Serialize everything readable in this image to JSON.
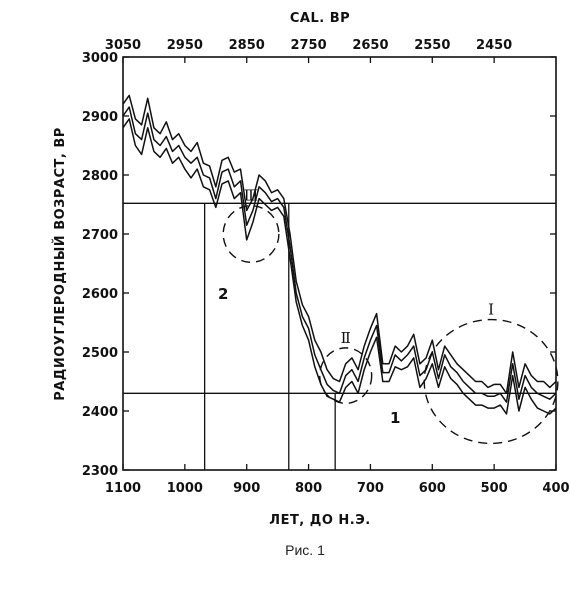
{
  "chart_data": {
    "type": "line",
    "title": "",
    "xlabel": "ЛЕТ, ДО Н.Э.",
    "ylabel": "РАДИОУГЛЕРОДНЫЙ ВОЗРАСТ, BP",
    "top_axis_label": "CAL. BP",
    "caption": "Рис. 1",
    "xlim": [
      1100,
      400
    ],
    "ylim": [
      2300,
      3000
    ],
    "x_ticks": [
      "1100",
      "1000",
      "900",
      "800",
      "700",
      "600",
      "500",
      "400"
    ],
    "x_tick_values": [
      1100,
      1000,
      900,
      800,
      700,
      600,
      500,
      400
    ],
    "top_ticks": [
      "3050",
      "2950",
      "2850",
      "2750",
      "2650",
      "2550",
      "2450"
    ],
    "top_tick_values": [
      1100,
      1000,
      900,
      800,
      700,
      600,
      500
    ],
    "y_ticks": [
      "2300",
      "2400",
      "2500",
      "2600",
      "2700",
      "2800",
      "2900",
      "3000"
    ],
    "y_tick_values": [
      2300,
      2400,
      2500,
      2600,
      2700,
      2800,
      2900,
      3000
    ],
    "x": [
      1100,
      1090,
      1080,
      1070,
      1060,
      1050,
      1040,
      1030,
      1020,
      1010,
      1000,
      990,
      980,
      970,
      960,
      950,
      940,
      930,
      920,
      910,
      900,
      890,
      880,
      870,
      860,
      850,
      840,
      830,
      820,
      810,
      800,
      790,
      780,
      770,
      760,
      750,
      740,
      730,
      720,
      710,
      700,
      690,
      680,
      670,
      660,
      650,
      640,
      630,
      620,
      610,
      600,
      590,
      580,
      570,
      560,
      550,
      540,
      530,
      520,
      510,
      500,
      490,
      480,
      470,
      460,
      450,
      440,
      430,
      420,
      410,
      400
    ],
    "series": [
      {
        "values": [
          2920,
          2935,
          2895,
          2885,
          2930,
          2880,
          2870,
          2890,
          2860,
          2870,
          2850,
          2840,
          2855,
          2820,
          2815,
          2780,
          2825,
          2830,
          2805,
          2810,
          2740,
          2760,
          2800,
          2790,
          2770,
          2775,
          2760,
          2700,
          2620,
          2580,
          2560,
          2520,
          2500,
          2470,
          2455,
          2450,
          2480,
          2490,
          2470,
          2510,
          2540,
          2565,
          2480,
          2480,
          2510,
          2500,
          2510,
          2530,
          2480,
          2490,
          2520,
          2470,
          2510,
          2495,
          2480,
          2470,
          2460,
          2450,
          2450,
          2440,
          2445,
          2445,
          2430,
          2500,
          2440,
          2480,
          2460,
          2450,
          2450,
          2440,
          2450
        ]
      },
      {
        "values": [
          2900,
          2915,
          2870,
          2860,
          2905,
          2860,
          2850,
          2865,
          2840,
          2850,
          2830,
          2820,
          2830,
          2800,
          2795,
          2760,
          2805,
          2810,
          2780,
          2790,
          2715,
          2740,
          2780,
          2770,
          2755,
          2760,
          2745,
          2680,
          2600,
          2560,
          2540,
          2495,
          2470,
          2445,
          2435,
          2430,
          2460,
          2470,
          2450,
          2490,
          2520,
          2545,
          2465,
          2465,
          2495,
          2485,
          2495,
          2510,
          2460,
          2470,
          2500,
          2455,
          2495,
          2475,
          2465,
          2450,
          2440,
          2430,
          2430,
          2425,
          2425,
          2430,
          2415,
          2480,
          2420,
          2460,
          2440,
          2430,
          2425,
          2420,
          2430
        ]
      },
      {
        "values": [
          2880,
          2895,
          2850,
          2835,
          2880,
          2840,
          2830,
          2845,
          2820,
          2830,
          2810,
          2795,
          2810,
          2780,
          2775,
          2745,
          2785,
          2790,
          2760,
          2770,
          2690,
          2720,
          2760,
          2750,
          2740,
          2745,
          2730,
          2660,
          2585,
          2545,
          2520,
          2475,
          2445,
          2425,
          2420,
          2415,
          2440,
          2450,
          2430,
          2470,
          2500,
          2525,
          2450,
          2450,
          2475,
          2470,
          2475,
          2490,
          2440,
          2455,
          2480,
          2440,
          2475,
          2455,
          2445,
          2430,
          2420,
          2410,
          2410,
          2405,
          2405,
          2410,
          2395,
          2460,
          2400,
          2440,
          2420,
          2405,
          2400,
          2395,
          2405
        ]
      }
    ],
    "reference_lines": {
      "horizontal": [
        2752,
        2430
      ],
      "vertical": [
        968,
        832,
        757
      ]
    },
    "circles": [
      {
        "label": "Ⅲ",
        "cx": 893,
        "cy": 2700,
        "rx": 45,
        "ry": 48
      },
      {
        "label": "Ⅱ",
        "cx": 740,
        "cy": 2460,
        "rx": 42,
        "ry": 47
      },
      {
        "label": "Ⅰ",
        "cx": 505,
        "cy": 2450,
        "rx": 108,
        "ry": 105
      }
    ],
    "region_labels": [
      {
        "text": "2",
        "x": 938,
        "y": 2590
      },
      {
        "text": "1",
        "x": 660,
        "y": 2380
      }
    ],
    "grid": false,
    "legend": "none"
  }
}
